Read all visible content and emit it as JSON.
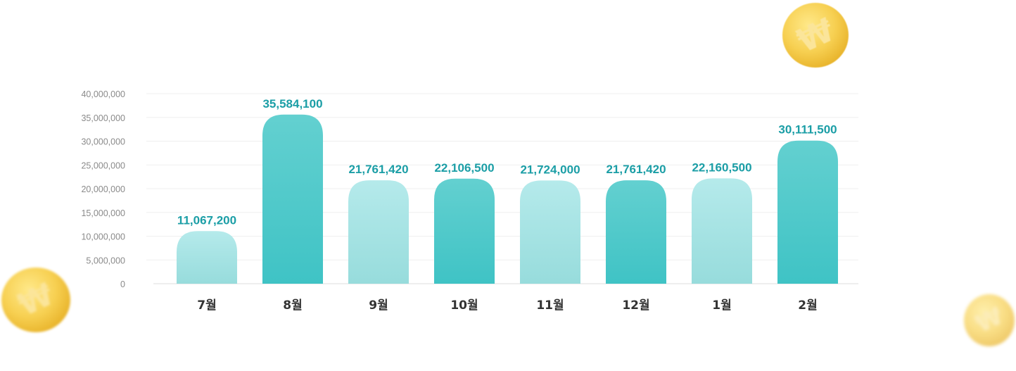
{
  "chart_data": {
    "type": "bar",
    "title": "",
    "xlabel": "",
    "ylabel": "",
    "ylim": [
      0,
      40000000
    ],
    "grid": true,
    "yticks": [
      "0",
      "5,000,000",
      "10,000,000",
      "15,000,000",
      "20,000,000",
      "25,000,000",
      "30,000,000",
      "35,000,000",
      "40,000,000"
    ],
    "ytick_values": [
      0,
      5000000,
      10000000,
      15000000,
      20000000,
      25000000,
      30000000,
      35000000,
      40000000
    ],
    "categories": [
      "7월",
      "8월",
      "9월",
      "10월",
      "11월",
      "12월",
      "1월",
      "2월"
    ],
    "values": [
      11067200,
      35584100,
      21761420,
      22106500,
      21724000,
      21761420,
      22160500,
      30111500
    ],
    "value_labels": [
      "11,067,200",
      "35,584,100",
      "21,761,420",
      "22,106,500",
      "21,724,000",
      "21,761,420",
      "22,160,500",
      "30,111,500"
    ],
    "colors": {
      "light_top": "#b5eaeb",
      "light_bottom": "#97dcdc",
      "dark_top": "#63d0d0",
      "dark_bottom": "#3fc3c5",
      "label": "#1b9ea6",
      "tick": "#8a8a8a",
      "category": "#333333",
      "grid": "#efefef"
    }
  },
  "decor": {
    "coin_symbol": "₩"
  }
}
